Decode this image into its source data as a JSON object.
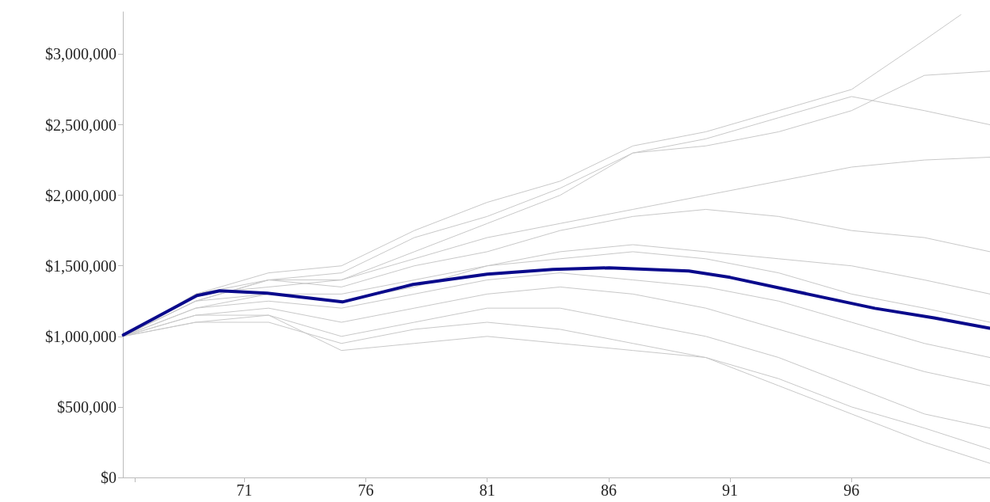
{
  "chart_data": {
    "type": "line",
    "x": [
      66,
      69,
      72,
      75,
      78,
      81,
      84,
      87,
      90,
      93,
      96,
      99,
      101.7
    ],
    "xlim": [
      66,
      101.7
    ],
    "xticks": [
      {
        "value": 66.5,
        "label": null
      },
      71,
      76,
      81,
      86,
      91,
      96
    ],
    "ylim": [
      0,
      3300000
    ],
    "yticks": [
      {
        "value": 0,
        "label": "$0"
      },
      {
        "value": 500000,
        "label": "$500,000"
      },
      {
        "value": 1000000,
        "label": "$1,000,000"
      },
      {
        "value": 1500000,
        "label": "$1,500,000"
      },
      {
        "value": 2000000,
        "label": "$2,000,000"
      },
      {
        "value": 2500000,
        "label": "$2,500,000"
      },
      {
        "value": 3000000,
        "label": "$3,000,000"
      }
    ],
    "grid": false,
    "marker": "none",
    "line_style": "solid",
    "series": [
      {
        "color": "#c8c8c8",
        "x": [
          66,
          69,
          72,
          75,
          78,
          81,
          84,
          87,
          90,
          93,
          96,
          99,
          100.5
        ],
        "values": [
          1000000,
          1300000,
          1450000,
          1500000,
          1750000,
          1950000,
          2100000,
          2350000,
          2450000,
          2600000,
          2750000,
          3100000,
          3280000
        ]
      },
      {
        "color": "#c8c8c8",
        "values": [
          1000000,
          1250000,
          1400000,
          1450000,
          1700000,
          1850000,
          2050000,
          2300000,
          2350000,
          2450000,
          2600000,
          2850000,
          2880000
        ]
      },
      {
        "color": "#c8c8c8",
        "values": [
          1000000,
          1300000,
          1350000,
          1400000,
          1600000,
          1800000,
          2000000,
          2300000,
          2400000,
          2550000,
          2700000,
          2600000,
          2500000
        ]
      },
      {
        "color": "#c8c8c8",
        "values": [
          1000000,
          1250000,
          1400000,
          1400000,
          1550000,
          1700000,
          1800000,
          1900000,
          2000000,
          2100000,
          2200000,
          2250000,
          2270000
        ]
      },
      {
        "color": "#c8c8c8",
        "values": [
          1000000,
          1300000,
          1400000,
          1350000,
          1500000,
          1600000,
          1750000,
          1850000,
          1900000,
          1850000,
          1750000,
          1700000,
          1600000
        ]
      },
      {
        "color": "#c8c8c8",
        "values": [
          1000000,
          1250000,
          1300000,
          1300000,
          1400000,
          1500000,
          1600000,
          1650000,
          1600000,
          1550000,
          1500000,
          1400000,
          1300000
        ]
      },
      {
        "color": "#c8c8c8",
        "values": [
          1000000,
          1200000,
          1300000,
          1250000,
          1350000,
          1500000,
          1550000,
          1600000,
          1550000,
          1450000,
          1300000,
          1200000,
          1100000
        ]
      },
      {
        "color": "#c8c8c8",
        "values": [
          1000000,
          1200000,
          1250000,
          1200000,
          1300000,
          1400000,
          1450000,
          1400000,
          1350000,
          1250000,
          1100000,
          950000,
          850000
        ]
      },
      {
        "color": "#c8c8c8",
        "values": [
          1000000,
          1150000,
          1200000,
          1100000,
          1200000,
          1300000,
          1350000,
          1300000,
          1200000,
          1050000,
          900000,
          750000,
          650000
        ]
      },
      {
        "color": "#c8c8c8",
        "values": [
          1000000,
          1150000,
          1150000,
          1000000,
          1100000,
          1200000,
          1200000,
          1100000,
          1000000,
          850000,
          650000,
          450000,
          350000
        ]
      },
      {
        "color": "#c8c8c8",
        "values": [
          1000000,
          1100000,
          1150000,
          900000,
          950000,
          1000000,
          950000,
          900000,
          850000,
          700000,
          500000,
          350000,
          200000
        ]
      },
      {
        "color": "#c8c8c8",
        "values": [
          1000000,
          1100000,
          1100000,
          950000,
          1050000,
          1100000,
          1050000,
          950000,
          850000,
          650000,
          450000,
          250000,
          100000
        ]
      },
      {
        "color": "#0a0a8c",
        "x": [
          66.02,
          69.05,
          69.99,
          71.94,
          75.04,
          77.94,
          81,
          83.7,
          86.02,
          89.3,
          91,
          93.57,
          96.96,
          99.4,
          101.68
        ],
        "values": [
          1010000,
          1289000,
          1323000,
          1306000,
          1244000,
          1368000,
          1441000,
          1475000,
          1486000,
          1463000,
          1418000,
          1323000,
          1199000,
          1131000,
          1058000
        ]
      }
    ]
  }
}
